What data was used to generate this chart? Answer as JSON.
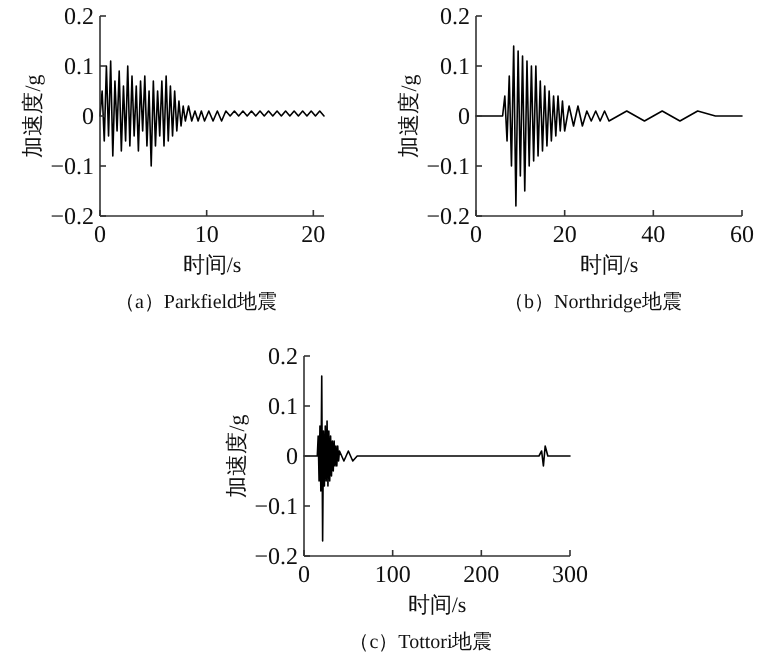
{
  "chart_data": [
    {
      "type": "line",
      "title": "（a）Parkfield地震",
      "xlabel": "时间/s",
      "ylabel": "加速度/g",
      "xlim": [
        0,
        21
      ],
      "xticks": [
        0,
        10,
        20
      ],
      "ylim": [
        -0.2,
        0.2
      ],
      "yticks": [
        -0.2,
        -0.1,
        0,
        0.1,
        0.2
      ],
      "x": [
        0,
        0.2,
        0.4,
        0.6,
        0.8,
        1.0,
        1.2,
        1.4,
        1.6,
        1.8,
        2.0,
        2.2,
        2.4,
        2.6,
        2.8,
        3.0,
        3.2,
        3.4,
        3.6,
        3.8,
        4.0,
        4.2,
        4.4,
        4.6,
        4.8,
        5.0,
        5.2,
        5.4,
        5.6,
        5.8,
        6.0,
        6.2,
        6.4,
        6.6,
        6.8,
        7.0,
        7.2,
        7.4,
        7.6,
        7.8,
        8.0,
        8.3,
        8.6,
        8.9,
        9.2,
        9.5,
        9.8,
        10.2,
        10.6,
        11,
        11.4,
        11.8,
        12.2,
        12.6,
        13,
        13.4,
        13.8,
        14.2,
        14.6,
        15,
        15.4,
        15.8,
        16.2,
        16.6,
        17,
        17.4,
        17.8,
        18.2,
        18.6,
        19,
        19.4,
        19.8,
        20.2,
        20.6,
        21
      ],
      "series": [
        {
          "color": "#000000",
          "values": [
            0,
            0.05,
            -0.05,
            0.1,
            -0.04,
            0.11,
            -0.08,
            0.07,
            -0.03,
            0.09,
            -0.07,
            0.06,
            -0.05,
            0.1,
            -0.06,
            0.08,
            -0.04,
            0.06,
            -0.07,
            0.07,
            -0.03,
            0.08,
            -0.06,
            0.05,
            -0.1,
            0.07,
            -0.06,
            0.05,
            -0.04,
            0.07,
            -0.06,
            0.08,
            -0.05,
            0.06,
            -0.04,
            0.05,
            -0.03,
            0.03,
            -0.02,
            0.02,
            -0.01,
            0.02,
            -0.01,
            0.01,
            -0.01,
            0.01,
            -0.01,
            0.01,
            -0.01,
            0.01,
            -0.01,
            0.01,
            0,
            0.01,
            0,
            0.01,
            0,
            0.01,
            0,
            0.01,
            0,
            0.01,
            0,
            0.01,
            0,
            0.01,
            0,
            0.01,
            0,
            0.01,
            0,
            0.01,
            0,
            0.01,
            0
          ]
        }
      ]
    },
    {
      "type": "line",
      "title": "（b）Northridge地震",
      "xlabel": "时间/s",
      "ylabel": "加速度/g",
      "xlim": [
        0,
        60
      ],
      "xticks": [
        0,
        20,
        40,
        60
      ],
      "ylim": [
        -0.2,
        0.2
      ],
      "yticks": [
        -0.2,
        -0.1,
        0,
        0.1,
        0.2
      ],
      "x": [
        0,
        6,
        6.5,
        7,
        7.5,
        8,
        8.5,
        9,
        9.5,
        10,
        10.5,
        11,
        11.5,
        12,
        12.5,
        13,
        13.5,
        14,
        14.5,
        15,
        15.5,
        16,
        16.5,
        17,
        17.5,
        18,
        18.5,
        19,
        19.5,
        20,
        21,
        22,
        23,
        24,
        25,
        26,
        27,
        28,
        29,
        30,
        34,
        38,
        42,
        46,
        50,
        54,
        58,
        60
      ],
      "series": [
        {
          "color": "#000000",
          "values": [
            0,
            0,
            0.04,
            -0.05,
            0.08,
            -0.1,
            0.14,
            -0.18,
            0.13,
            -0.12,
            0.12,
            -0.15,
            0.11,
            -0.1,
            0.1,
            -0.09,
            0.1,
            -0.08,
            0.07,
            -0.07,
            0.06,
            -0.06,
            0.05,
            -0.05,
            0.04,
            -0.04,
            0.04,
            -0.03,
            0.03,
            -0.03,
            0.02,
            -0.02,
            0.02,
            -0.02,
            0.01,
            -0.01,
            0.01,
            -0.01,
            0.01,
            -0.01,
            0.01,
            -0.01,
            0.01,
            -0.01,
            0.01,
            0,
            0,
            0
          ]
        }
      ]
    },
    {
      "type": "line",
      "title": "（c）Tottori地震",
      "xlabel": "时间/s",
      "ylabel": "加速度/g",
      "xlim": [
        0,
        300
      ],
      "xticks": [
        0,
        100,
        200,
        300
      ],
      "ylim": [
        -0.2,
        0.2
      ],
      "yticks": [
        -0.2,
        -0.1,
        0,
        0.1,
        0.2
      ],
      "x": [
        0,
        15,
        16,
        17,
        18,
        19,
        20,
        21,
        22,
        23,
        24,
        25,
        26,
        27,
        28,
        29,
        30,
        31,
        32,
        33,
        34,
        35,
        36,
        37,
        38,
        39,
        40,
        45,
        50,
        55,
        60,
        70,
        80,
        100,
        150,
        200,
        250,
        265,
        268,
        270,
        272,
        275,
        300
      ],
      "series": [
        {
          "color": "#000000",
          "values": [
            0,
            0,
            0.04,
            -0.05,
            0.06,
            -0.07,
            0.16,
            -0.17,
            0.05,
            -0.06,
            0.06,
            -0.05,
            0.07,
            -0.06,
            0.05,
            -0.05,
            0.04,
            -0.04,
            0.03,
            -0.03,
            0.03,
            -0.02,
            0.02,
            -0.02,
            0.02,
            -0.01,
            0.01,
            -0.01,
            0.01,
            -0.01,
            0,
            0,
            0,
            0,
            0,
            0,
            0,
            0,
            0.01,
            -0.02,
            0.02,
            0,
            0
          ]
        }
      ]
    }
  ]
}
